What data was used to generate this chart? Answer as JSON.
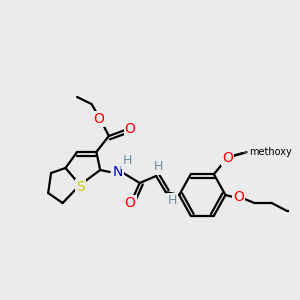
{
  "bg_color": "#ebebeb",
  "atom_colors": {
    "O": "#ff0000",
    "N": "#0000cd",
    "S": "#cccc00",
    "H": "#6b8e9f",
    "C": "#000000"
  },
  "bond_color": "#000000",
  "line_width": 1.6,
  "figsize": [
    3.0,
    3.0
  ],
  "dpi": 100
}
